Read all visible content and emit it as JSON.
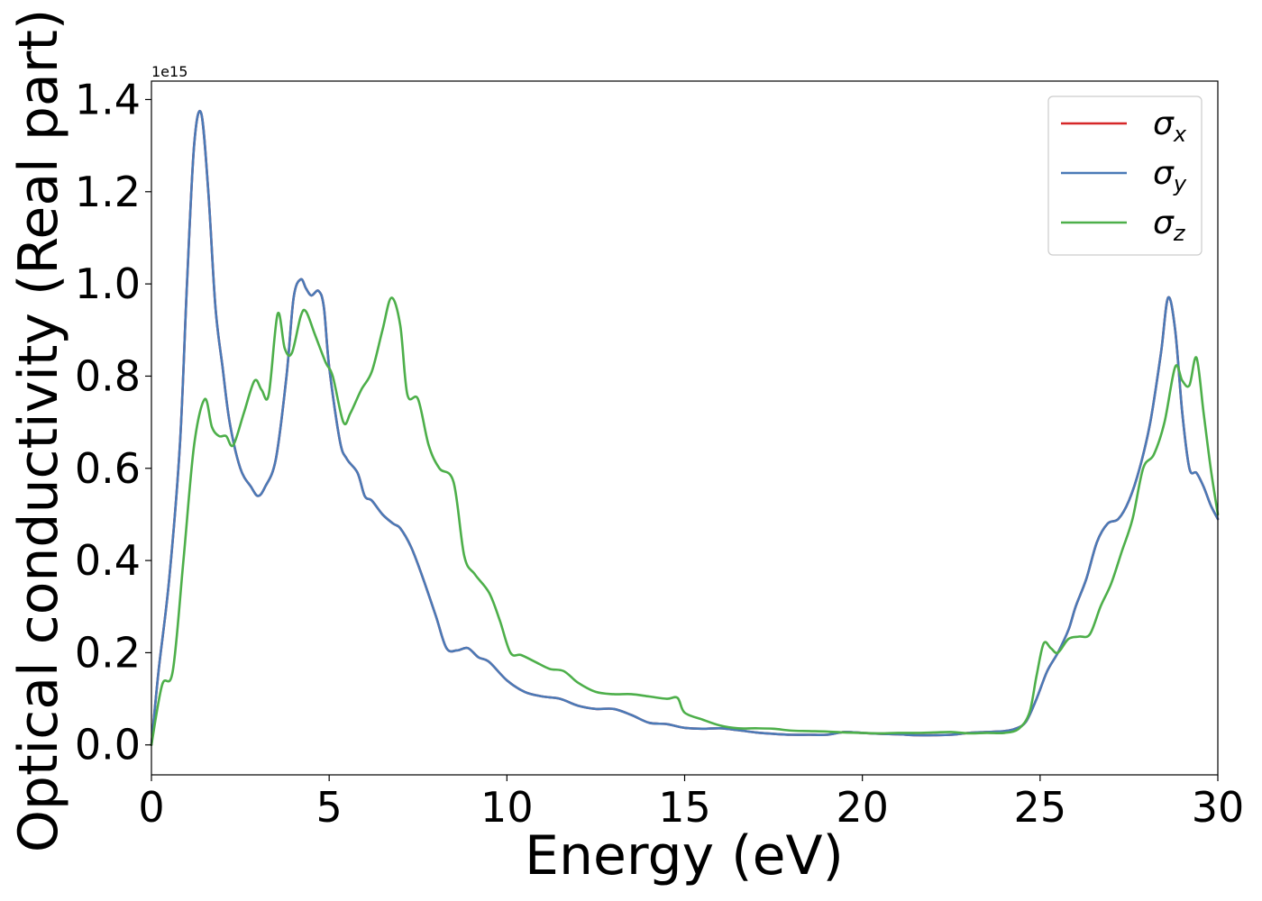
{
  "chart_data": {
    "type": "line",
    "xlabel": "Energy (eV)",
    "ylabel": "Optical conductivity (Real part)",
    "y_offset_label": "1e15",
    "y_scale": 1000000000000000.0,
    "xlim": [
      0,
      30
    ],
    "ylim": [
      -0.065,
      1.44
    ],
    "xticks": [
      0,
      5,
      10,
      15,
      20,
      25,
      30
    ],
    "xtick_labels": [
      "0",
      "5",
      "10",
      "15",
      "20",
      "25",
      "30"
    ],
    "yticks": [
      0.0,
      0.2,
      0.4,
      0.6,
      0.8,
      1.0,
      1.2,
      1.4
    ],
    "ytick_labels": [
      "0.0",
      "0.2",
      "0.4",
      "0.6",
      "0.8",
      "1.0",
      "1.2",
      "1.4"
    ],
    "grid": false,
    "legend_position": "top-right",
    "series": [
      {
        "name": "σ_x",
        "symbol": "σ",
        "subscript": "x",
        "color": "#d62728",
        "x": [
          0,
          0.2,
          0.5,
          0.8,
          1.0,
          1.2,
          1.4,
          1.6,
          1.8,
          2.0,
          2.2,
          2.5,
          2.8,
          3.0,
          3.2,
          3.5,
          3.8,
          4.0,
          4.2,
          4.35,
          4.5,
          4.7,
          4.85,
          5.0,
          5.3,
          5.5,
          5.8,
          6.0,
          6.2,
          6.5,
          6.8,
          7.0,
          7.3,
          7.6,
          8.0,
          8.3,
          8.6,
          8.9,
          9.2,
          9.5,
          10.0,
          10.5,
          11.0,
          11.5,
          12.0,
          12.5,
          13.0,
          13.5,
          14.0,
          14.5,
          15.0,
          15.5,
          16.0,
          16.5,
          17.0,
          17.5,
          18.0,
          18.5,
          19.0,
          19.5,
          20.0,
          20.5,
          21.0,
          21.5,
          22.0,
          22.5,
          23.0,
          23.5,
          24.0,
          24.3,
          24.6,
          24.9,
          25.2,
          25.5,
          25.8,
          26.0,
          26.3,
          26.6,
          26.9,
          27.2,
          27.5,
          27.8,
          28.1,
          28.4,
          28.6,
          28.8,
          29.0,
          29.2,
          29.4,
          29.6,
          29.8,
          30.0
        ],
        "y": [
          0.0,
          0.16,
          0.36,
          0.65,
          1.0,
          1.3,
          1.37,
          1.2,
          0.95,
          0.82,
          0.7,
          0.6,
          0.56,
          0.54,
          0.56,
          0.62,
          0.8,
          0.97,
          1.01,
          0.99,
          0.975,
          0.985,
          0.95,
          0.82,
          0.66,
          0.62,
          0.59,
          0.54,
          0.53,
          0.5,
          0.48,
          0.47,
          0.43,
          0.37,
          0.28,
          0.21,
          0.205,
          0.21,
          0.19,
          0.18,
          0.14,
          0.115,
          0.105,
          0.1,
          0.085,
          0.078,
          0.078,
          0.065,
          0.048,
          0.045,
          0.037,
          0.035,
          0.036,
          0.032,
          0.027,
          0.024,
          0.022,
          0.022,
          0.022,
          0.028,
          0.026,
          0.024,
          0.023,
          0.021,
          0.021,
          0.022,
          0.026,
          0.028,
          0.03,
          0.035,
          0.05,
          0.1,
          0.16,
          0.2,
          0.25,
          0.3,
          0.36,
          0.44,
          0.48,
          0.49,
          0.53,
          0.6,
          0.7,
          0.85,
          0.97,
          0.9,
          0.72,
          0.6,
          0.59,
          0.56,
          0.52,
          0.49
        ]
      },
      {
        "name": "σ_y",
        "symbol": "σ",
        "subscript": "y",
        "color": "#4a7ab7",
        "x": [
          0,
          0.2,
          0.5,
          0.8,
          1.0,
          1.2,
          1.4,
          1.6,
          1.8,
          2.0,
          2.2,
          2.5,
          2.8,
          3.0,
          3.2,
          3.5,
          3.8,
          4.0,
          4.2,
          4.35,
          4.5,
          4.7,
          4.85,
          5.0,
          5.3,
          5.5,
          5.8,
          6.0,
          6.2,
          6.5,
          6.8,
          7.0,
          7.3,
          7.6,
          8.0,
          8.3,
          8.6,
          8.9,
          9.2,
          9.5,
          10.0,
          10.5,
          11.0,
          11.5,
          12.0,
          12.5,
          13.0,
          13.5,
          14.0,
          14.5,
          15.0,
          15.5,
          16.0,
          16.5,
          17.0,
          17.5,
          18.0,
          18.5,
          19.0,
          19.5,
          20.0,
          20.5,
          21.0,
          21.5,
          22.0,
          22.5,
          23.0,
          23.5,
          24.0,
          24.3,
          24.6,
          24.9,
          25.2,
          25.5,
          25.8,
          26.0,
          26.3,
          26.6,
          26.9,
          27.2,
          27.5,
          27.8,
          28.1,
          28.4,
          28.6,
          28.8,
          29.0,
          29.2,
          29.4,
          29.6,
          29.8,
          30.0
        ],
        "y": [
          0.0,
          0.16,
          0.36,
          0.65,
          1.0,
          1.3,
          1.37,
          1.2,
          0.95,
          0.82,
          0.7,
          0.6,
          0.56,
          0.54,
          0.56,
          0.62,
          0.8,
          0.97,
          1.01,
          0.99,
          0.975,
          0.985,
          0.95,
          0.82,
          0.66,
          0.62,
          0.59,
          0.54,
          0.53,
          0.5,
          0.48,
          0.47,
          0.43,
          0.37,
          0.28,
          0.21,
          0.205,
          0.21,
          0.19,
          0.18,
          0.14,
          0.115,
          0.105,
          0.1,
          0.085,
          0.078,
          0.078,
          0.065,
          0.048,
          0.045,
          0.037,
          0.035,
          0.036,
          0.032,
          0.027,
          0.024,
          0.022,
          0.022,
          0.022,
          0.028,
          0.026,
          0.024,
          0.023,
          0.021,
          0.021,
          0.022,
          0.026,
          0.028,
          0.03,
          0.035,
          0.05,
          0.1,
          0.16,
          0.2,
          0.25,
          0.3,
          0.36,
          0.44,
          0.48,
          0.49,
          0.53,
          0.6,
          0.7,
          0.85,
          0.97,
          0.9,
          0.72,
          0.6,
          0.59,
          0.56,
          0.52,
          0.49
        ]
      },
      {
        "name": "σ_z",
        "symbol": "σ",
        "subscript": "z",
        "color": "#4daf4a",
        "x": [
          0,
          0.3,
          0.6,
          0.9,
          1.2,
          1.5,
          1.7,
          1.9,
          2.1,
          2.3,
          2.6,
          2.9,
          3.1,
          3.3,
          3.55,
          3.75,
          3.95,
          4.2,
          4.35,
          4.6,
          4.9,
          5.1,
          5.4,
          5.6,
          5.9,
          6.2,
          6.5,
          6.75,
          7.0,
          7.2,
          7.5,
          7.8,
          8.1,
          8.5,
          8.8,
          9.1,
          9.5,
          9.8,
          10.1,
          10.4,
          10.8,
          11.2,
          11.6,
          12.0,
          12.5,
          13.0,
          13.5,
          14.0,
          14.5,
          14.8,
          15.0,
          15.5,
          16.0,
          16.5,
          17.0,
          17.5,
          18.0,
          18.5,
          19.0,
          19.5,
          20.0,
          20.5,
          21.0,
          21.5,
          22.0,
          22.5,
          23.0,
          23.5,
          24.0,
          24.4,
          24.7,
          24.9,
          25.1,
          25.3,
          25.5,
          25.8,
          26.1,
          26.4,
          26.7,
          27.0,
          27.3,
          27.6,
          27.9,
          28.2,
          28.5,
          28.8,
          29.0,
          29.2,
          29.4,
          29.6,
          29.8,
          30.0
        ],
        "y": [
          0.0,
          0.13,
          0.16,
          0.4,
          0.65,
          0.75,
          0.69,
          0.67,
          0.67,
          0.65,
          0.72,
          0.79,
          0.77,
          0.76,
          0.935,
          0.86,
          0.85,
          0.93,
          0.94,
          0.89,
          0.83,
          0.8,
          0.7,
          0.72,
          0.77,
          0.81,
          0.9,
          0.97,
          0.91,
          0.76,
          0.75,
          0.65,
          0.6,
          0.57,
          0.41,
          0.37,
          0.33,
          0.27,
          0.2,
          0.195,
          0.18,
          0.165,
          0.16,
          0.135,
          0.115,
          0.11,
          0.11,
          0.105,
          0.1,
          0.102,
          0.07,
          0.055,
          0.042,
          0.036,
          0.036,
          0.035,
          0.031,
          0.03,
          0.029,
          0.027,
          0.026,
          0.025,
          0.026,
          0.026,
          0.027,
          0.028,
          0.025,
          0.026,
          0.026,
          0.035,
          0.07,
          0.15,
          0.22,
          0.21,
          0.2,
          0.23,
          0.235,
          0.24,
          0.3,
          0.35,
          0.42,
          0.49,
          0.6,
          0.63,
          0.7,
          0.82,
          0.79,
          0.78,
          0.84,
          0.72,
          0.6,
          0.5
        ]
      }
    ]
  }
}
